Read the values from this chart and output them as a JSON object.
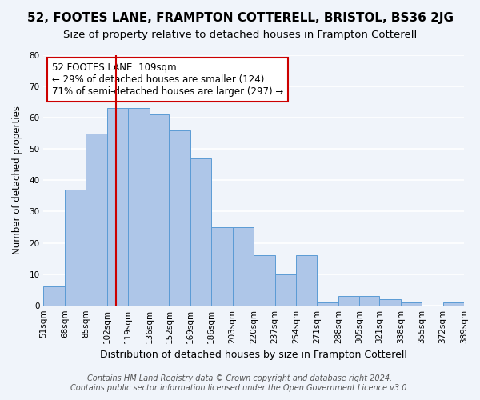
{
  "title": "52, FOOTES LANE, FRAMPTON COTTERELL, BRISTOL, BS36 2JG",
  "subtitle": "Size of property relative to detached houses in Frampton Cotterell",
  "xlabel": "Distribution of detached houses by size in Frampton Cotterell",
  "ylabel": "Number of detached properties",
  "footer_line1": "Contains HM Land Registry data © Crown copyright and database right 2024.",
  "footer_line2": "Contains public sector information licensed under the Open Government Licence v3.0.",
  "annotation_title": "52 FOOTES LANE: 109sqm",
  "annotation_line2": "← 29% of detached houses are smaller (124)",
  "annotation_line3": "71% of semi-detached houses are larger (297) →",
  "bar_edges": [
    51,
    68,
    85,
    102,
    119,
    136,
    152,
    169,
    186,
    203,
    220,
    237,
    254,
    271,
    288,
    305,
    321,
    338,
    355,
    372,
    389
  ],
  "bar_heights": [
    6,
    37,
    55,
    63,
    63,
    61,
    56,
    47,
    25,
    25,
    16,
    10,
    16,
    1,
    3,
    3,
    2,
    1,
    0,
    1
  ],
  "bar_color": "#aec6e8",
  "bar_edge_color": "#5b9bd5",
  "vline_x": 109,
  "vline_color": "#cc0000",
  "ylim": [
    0,
    80
  ],
  "yticks": [
    0,
    10,
    20,
    30,
    40,
    50,
    60,
    70,
    80
  ],
  "background_color": "#f0f4fa",
  "annotation_box_color": "#ffffff",
  "annotation_box_edge": "#cc0000",
  "grid_color": "#ffffff",
  "title_fontsize": 11,
  "subtitle_fontsize": 9.5,
  "xlabel_fontsize": 9,
  "ylabel_fontsize": 8.5,
  "tick_fontsize": 7.5,
  "annotation_fontsize": 8.5,
  "footer_fontsize": 7
}
